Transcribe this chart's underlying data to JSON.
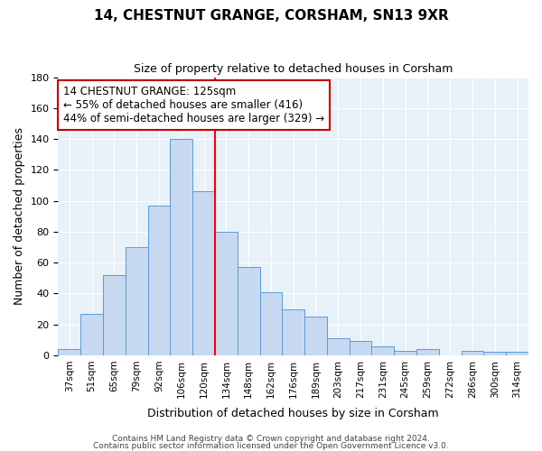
{
  "title": "14, CHESTNUT GRANGE, CORSHAM, SN13 9XR",
  "subtitle": "Size of property relative to detached houses in Corsham",
  "xlabel": "Distribution of detached houses by size in Corsham",
  "ylabel": "Number of detached properties",
  "bar_labels": [
    "37sqm",
    "51sqm",
    "65sqm",
    "79sqm",
    "92sqm",
    "106sqm",
    "120sqm",
    "134sqm",
    "148sqm",
    "162sqm",
    "176sqm",
    "189sqm",
    "203sqm",
    "217sqm",
    "231sqm",
    "245sqm",
    "259sqm",
    "272sqm",
    "286sqm",
    "300sqm",
    "314sqm"
  ],
  "bar_values": [
    4,
    27,
    52,
    70,
    97,
    140,
    106,
    80,
    57,
    41,
    30,
    25,
    11,
    9,
    6,
    3,
    4,
    0,
    3,
    2,
    2
  ],
  "bar_color": "#c6d9f0",
  "bar_edge_color": "#5b9bd5",
  "vline_x": 6.5,
  "vline_color": "red",
  "ylim": [
    0,
    180
  ],
  "annotation_title": "14 CHESTNUT GRANGE: 125sqm",
  "annotation_line1": "← 55% of detached houses are smaller (416)",
  "annotation_line2": "44% of semi-detached houses are larger (329) →",
  "annotation_box_color": "#ffffff",
  "annotation_box_edge": "#c00000",
  "footer1": "Contains HM Land Registry data © Crown copyright and database right 2024.",
  "footer2": "Contains public sector information licensed under the Open Government Licence v3.0."
}
